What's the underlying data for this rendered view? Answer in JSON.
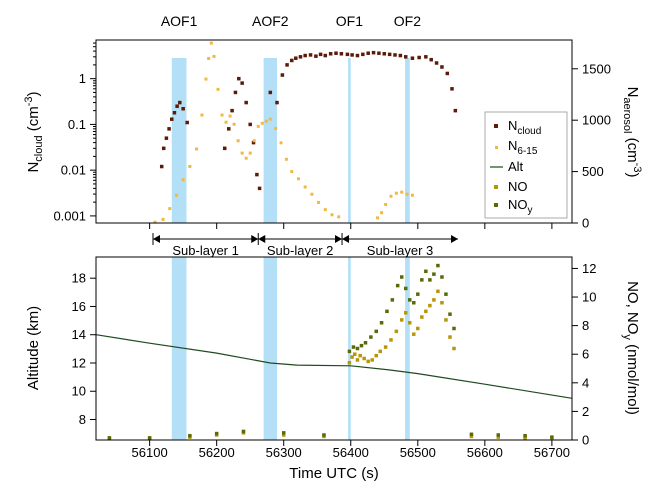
{
  "chart_data": {
    "type": "scatter",
    "x": {
      "label": "Time UTC (s)",
      "range": [
        56020,
        56730
      ],
      "ticks": [
        56100,
        56200,
        56300,
        56400,
        56500,
        56600,
        56700
      ]
    },
    "top_panel": {
      "left_axis": {
        "label_main": "N",
        "label_sub": "cloud",
        "label_unit": " (cm",
        "label_exp": "-3",
        "label_close": ")",
        "scale": "log",
        "range": [
          0.0007,
          7
        ],
        "ticks": [
          {
            "v": 0.001,
            "t": "0.001"
          },
          {
            "v": 0.01,
            "t": "0.01"
          },
          {
            "v": 0.1,
            "t": "0.1"
          },
          {
            "v": 1,
            "t": "1"
          }
        ]
      },
      "right_axis": {
        "label_main": "N",
        "label_sub": "aerosol",
        "label_unit": " (cm",
        "label_exp": "-3",
        "label_close": ")",
        "range": [
          0,
          1780
        ],
        "ticks": [
          0,
          500,
          1000,
          1500
        ]
      },
      "shaded_regions": [
        {
          "label": "AOF1",
          "x0": 56133,
          "x1": 56155
        },
        {
          "label": "AOF2",
          "x0": 56270,
          "x1": 56290
        },
        {
          "label": "OF1",
          "x0": 56396,
          "x1": 56400
        },
        {
          "label": "OF2",
          "x0": 56481,
          "x1": 56488
        }
      ],
      "series": [
        {
          "name_main": "N",
          "name_sub": "cloud",
          "color": "#5c1a08",
          "axis": "left",
          "marker": "square",
          "points": [
            [
              56118,
              0.012
            ],
            [
              56121,
              0.03
            ],
            [
              56125,
              0.05
            ],
            [
              56129,
              0.08
            ],
            [
              56133,
              0.13
            ],
            [
              56137,
              0.18
            ],
            [
              56141,
              0.25
            ],
            [
              56145,
              0.3
            ],
            [
              56150,
              0.22
            ],
            [
              56156,
              0.11
            ],
            [
              56212,
              0.03
            ],
            [
              56218,
              0.08
            ],
            [
              56223,
              0.2
            ],
            [
              56228,
              0.5
            ],
            [
              56233,
              1.0
            ],
            [
              56238,
              0.8
            ],
            [
              56244,
              0.3
            ],
            [
              56250,
              0.1
            ],
            [
              56255,
              0.04
            ],
            [
              56260,
              0.008
            ],
            [
              56264,
              0.004
            ],
            [
              56280,
              0.5
            ],
            [
              56290,
              0.3
            ],
            [
              56298,
              1.2
            ],
            [
              56305,
              2.0
            ],
            [
              56312,
              2.5
            ],
            [
              56318,
              2.8
            ],
            [
              56325,
              3.0
            ],
            [
              56332,
              3.2
            ],
            [
              56340,
              3.3
            ],
            [
              56348,
              3.1
            ],
            [
              56355,
              3.4
            ],
            [
              56362,
              3.2
            ],
            [
              56370,
              3.5
            ],
            [
              56378,
              3.6
            ],
            [
              56386,
              3.5
            ],
            [
              56395,
              3.4
            ],
            [
              56402,
              3.3
            ],
            [
              56410,
              3.2
            ],
            [
              56418,
              3.4
            ],
            [
              56426,
              3.6
            ],
            [
              56434,
              3.7
            ],
            [
              56442,
              3.6
            ],
            [
              56450,
              3.5
            ],
            [
              56458,
              3.4
            ],
            [
              56466,
              3.3
            ],
            [
              56474,
              3.2
            ],
            [
              56482,
              3.0
            ],
            [
              56492,
              2.8
            ],
            [
              56502,
              2.9
            ],
            [
              56512,
              3.0
            ],
            [
              56520,
              2.6
            ],
            [
              56528,
              2.2
            ],
            [
              56536,
              1.8
            ],
            [
              56544,
              1.3
            ],
            [
              56551,
              0.6
            ],
            [
              56556,
              0.2
            ]
          ]
        },
        {
          "name_main": "N",
          "name_sub": "6-15",
          "color": "#f2b840",
          "axis": "right",
          "marker": "small",
          "points": [
            [
              56108,
              8
            ],
            [
              56120,
              35
            ],
            [
              56130,
              140
            ],
            [
              56140,
              270
            ],
            [
              56150,
              420
            ],
            [
              56160,
              550
            ],
            [
              56170,
              720
            ],
            [
              56178,
              1050
            ],
            [
              56184,
              1400
            ],
            [
              56188,
              1600
            ],
            [
              56192,
              1750
            ],
            [
              56196,
              1620
            ],
            [
              56202,
              1300
            ],
            [
              56208,
              1050
            ],
            [
              56214,
              980
            ],
            [
              56220,
              1040
            ],
            [
              56226,
              960
            ],
            [
              56232,
              800
            ],
            [
              56238,
              680
            ],
            [
              56244,
              630
            ],
            [
              56250,
              680
            ],
            [
              56256,
              800
            ],
            [
              56262,
              940
            ],
            [
              56268,
              970
            ],
            [
              56274,
              990
            ],
            [
              56280,
              1010
            ],
            [
              56288,
              920
            ],
            [
              56296,
              780
            ],
            [
              56304,
              620
            ],
            [
              56312,
              500
            ],
            [
              56322,
              430
            ],
            [
              56332,
              350
            ],
            [
              56342,
              280
            ],
            [
              56352,
              200
            ],
            [
              56362,
              130
            ],
            [
              56372,
              80
            ],
            [
              56382,
              60
            ],
            [
              56440,
              50
            ],
            [
              56446,
              100
            ],
            [
              56452,
              180
            ],
            [
              56460,
              260
            ],
            [
              56468,
              290
            ],
            [
              56476,
              300
            ],
            [
              56484,
              280
            ],
            [
              56492,
              270
            ]
          ]
        }
      ]
    },
    "sublayers": [
      {
        "label": "Sub-layer 1",
        "x0": 56105,
        "x1": 56262
      },
      {
        "label": "Sub-layer 2",
        "x0": 56262,
        "x1": 56387
      },
      {
        "label": "Sub-layer 3",
        "x0": 56387,
        "x1": 56560
      }
    ],
    "bottom_panel": {
      "left_axis": {
        "label": "Altitude (km)",
        "range": [
          6.55,
          19.5
        ],
        "ticks": [
          8,
          10,
          12,
          14,
          16,
          18
        ]
      },
      "right_axis": {
        "label_main": "NO, NO",
        "label_sub": "y",
        "label_rest": " (nmol/mol)",
        "range": [
          0,
          12.8
        ],
        "ticks": [
          0,
          2,
          4,
          6,
          8,
          10,
          12
        ]
      },
      "series": [
        {
          "name_main": "Alt",
          "name_sub": "",
          "color": "#1f4a1f",
          "axis": "left",
          "marker": "line",
          "points": [
            [
              56020,
              14.0
            ],
            [
              56100,
              13.4
            ],
            [
              56200,
              12.7
            ],
            [
              56280,
              12.0
            ],
            [
              56320,
              11.85
            ],
            [
              56400,
              11.8
            ],
            [
              56460,
              11.5
            ],
            [
              56500,
              11.25
            ],
            [
              56600,
              10.5
            ],
            [
              56730,
              9.5
            ]
          ]
        },
        {
          "name_main": "NO",
          "name_sub": "",
          "color": "#b8960a",
          "axis": "right",
          "marker": "square",
          "points": [
            [
              56040,
              0.1
            ],
            [
              56100,
              0.1
            ],
            [
              56160,
              0.2
            ],
            [
              56200,
              0.35
            ],
            [
              56240,
              0.5
            ],
            [
              56300,
              0.35
            ],
            [
              56360,
              0.25
            ],
            [
              56398,
              5.4
            ],
            [
              56402,
              5.8
            ],
            [
              56406,
              6.0
            ],
            [
              56410,
              5.6
            ],
            [
              56414,
              5.9
            ],
            [
              56420,
              5.7
            ],
            [
              56426,
              5.5
            ],
            [
              56432,
              5.6
            ],
            [
              56438,
              5.9
            ],
            [
              56444,
              6.2
            ],
            [
              56452,
              6.5
            ],
            [
              56460,
              7.0
            ],
            [
              56468,
              7.6
            ],
            [
              56476,
              8.4
            ],
            [
              56482,
              8.9
            ],
            [
              56488,
              8.2
            ],
            [
              56494,
              7.4
            ],
            [
              56500,
              7.8
            ],
            [
              56506,
              8.6
            ],
            [
              56512,
              9.0
            ],
            [
              56518,
              9.4
            ],
            [
              56524,
              9.8
            ],
            [
              56530,
              10.4
            ],
            [
              56536,
              9.6
            ],
            [
              56542,
              8.4
            ],
            [
              56548,
              7.2
            ],
            [
              56554,
              6.4
            ],
            [
              56580,
              0.25
            ],
            [
              56620,
              0.2
            ],
            [
              56660,
              0.15
            ],
            [
              56700,
              0.1
            ]
          ]
        },
        {
          "name_main": "NO",
          "name_sub": "y",
          "color": "#5a6a0a",
          "axis": "right",
          "marker": "square",
          "points": [
            [
              56040,
              0.15
            ],
            [
              56100,
              0.15
            ],
            [
              56160,
              0.3
            ],
            [
              56200,
              0.45
            ],
            [
              56240,
              0.6
            ],
            [
              56300,
              0.5
            ],
            [
              56360,
              0.35
            ],
            [
              56398,
              6.2
            ],
            [
              56404,
              6.5
            ],
            [
              56410,
              6.4
            ],
            [
              56416,
              6.6
            ],
            [
              56422,
              6.8
            ],
            [
              56430,
              7.2
            ],
            [
              56438,
              7.6
            ],
            [
              56446,
              8.2
            ],
            [
              56454,
              9.0
            ],
            [
              56462,
              9.8
            ],
            [
              56470,
              10.8
            ],
            [
              56476,
              11.4
            ],
            [
              56482,
              10.6
            ],
            [
              56488,
              9.8
            ],
            [
              56494,
              9.6
            ],
            [
              56500,
              10.2
            ],
            [
              56506,
              11.2
            ],
            [
              56512,
              11.8
            ],
            [
              56518,
              11.2
            ],
            [
              56524,
              11.6
            ],
            [
              56530,
              12.2
            ],
            [
              56536,
              11.4
            ],
            [
              56542,
              10.2
            ],
            [
              56548,
              8.8
            ],
            [
              56554,
              7.8
            ],
            [
              56580,
              0.4
            ],
            [
              56620,
              0.35
            ],
            [
              56660,
              0.3
            ],
            [
              56700,
              0.2
            ]
          ]
        }
      ]
    }
  }
}
